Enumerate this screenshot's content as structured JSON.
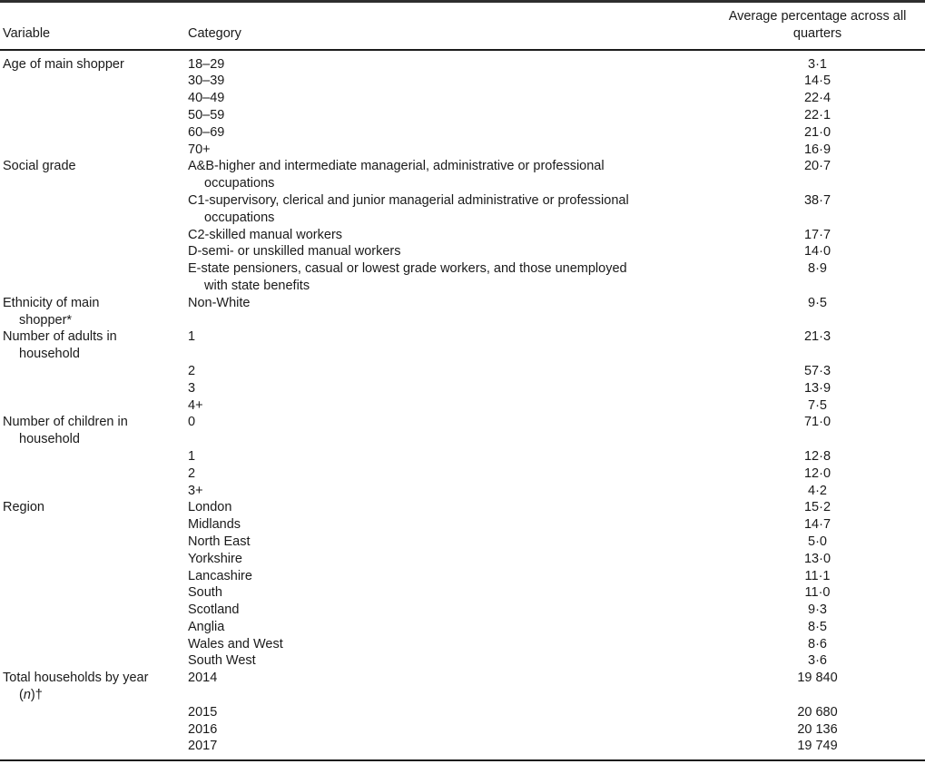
{
  "table": {
    "header": {
      "variable": "Variable",
      "category": "Category",
      "value": "Average percentage across all\nquarters"
    },
    "rows": [
      {
        "variable": "Age of main shopper",
        "category": "18–29",
        "value": "3·1"
      },
      {
        "variable": "",
        "category": "30–39",
        "value": "14·5"
      },
      {
        "variable": "",
        "category": "40–49",
        "value": "22·4"
      },
      {
        "variable": "",
        "category": "50–59",
        "value": "22·1"
      },
      {
        "variable": "",
        "category": "60–69",
        "value": "21·0"
      },
      {
        "variable": "",
        "category": "70+",
        "value": "16·9"
      },
      {
        "variable": "Social grade",
        "category": "A&B-higher and intermediate managerial, administrative or professional\noccupations",
        "value": "20·7"
      },
      {
        "variable": "",
        "category": "C1-supervisory, clerical and junior managerial administrative or professional\noccupations",
        "value": "38·7"
      },
      {
        "variable": "",
        "category": "C2-skilled manual workers",
        "value": "17·7"
      },
      {
        "variable": "",
        "category": "D-semi- or unskilled manual workers",
        "value": "14·0"
      },
      {
        "variable": "",
        "category": "E-state pensioners, casual or lowest grade workers, and those unemployed\nwith state benefits",
        "value": "8·9"
      },
      {
        "variable": "Ethnicity of main\nshopper*",
        "category": "Non-White",
        "value": "9·5"
      },
      {
        "variable": "Number of adults in\nhousehold",
        "category": "1",
        "value": "21·3"
      },
      {
        "variable": "",
        "category": "2",
        "value": "57·3"
      },
      {
        "variable": "",
        "category": "3",
        "value": "13·9"
      },
      {
        "variable": "",
        "category": "4+",
        "value": "7·5"
      },
      {
        "variable": "Number of children in\nhousehold",
        "category": "0",
        "value": "71·0"
      },
      {
        "variable": "",
        "category": "1",
        "value": "12·8"
      },
      {
        "variable": "",
        "category": "2",
        "value": "12·0"
      },
      {
        "variable": "",
        "category": "3+",
        "value": "4·2"
      },
      {
        "variable": "Region",
        "category": "London",
        "value": "15·2"
      },
      {
        "variable": "",
        "category": "Midlands",
        "value": "14·7"
      },
      {
        "variable": "",
        "category": "North East",
        "value": "5·0"
      },
      {
        "variable": "",
        "category": "Yorkshire",
        "value": "13·0"
      },
      {
        "variable": "",
        "category": "Lancashire",
        "value": "11·1"
      },
      {
        "variable": "",
        "category": "South",
        "value": "11·0"
      },
      {
        "variable": "",
        "category": "Scotland",
        "value": "9·3"
      },
      {
        "variable": "",
        "category": "Anglia",
        "value": "8·5"
      },
      {
        "variable": "",
        "category": "Wales and West",
        "value": "8·6"
      },
      {
        "variable": "",
        "category": "South West",
        "value": "3·6"
      },
      {
        "variable": "Total households by year\n(*n*)†",
        "category": "2014",
        "value": "19 840"
      },
      {
        "variable": "",
        "category": "2015",
        "value": "20 680"
      },
      {
        "variable": "",
        "category": "2016",
        "value": "20 136"
      },
      {
        "variable": "",
        "category": "2017",
        "value": "19 749"
      }
    ]
  }
}
